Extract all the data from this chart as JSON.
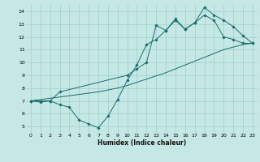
{
  "xlabel": "Humidex (Indice chaleur)",
  "bg_color": "#c5e8e5",
  "grid_color": "#9ecece",
  "line_color": "#1a6b6b",
  "xlim": [
    -0.5,
    23.5
  ],
  "ylim": [
    4.5,
    14.5
  ],
  "xticks": [
    0,
    1,
    2,
    3,
    4,
    5,
    6,
    7,
    8,
    9,
    10,
    11,
    12,
    13,
    14,
    15,
    16,
    17,
    18,
    19,
    20,
    21,
    22,
    23
  ],
  "yticks": [
    5,
    6,
    7,
    8,
    9,
    10,
    11,
    12,
    13,
    14
  ],
  "line1_x": [
    0,
    1,
    2,
    3,
    4,
    5,
    6,
    7,
    8,
    9,
    10,
    11,
    12,
    13,
    14,
    15,
    16,
    17,
    18,
    19,
    20,
    21,
    22,
    23
  ],
  "line1_y": [
    7.0,
    6.9,
    7.0,
    6.7,
    6.5,
    5.5,
    5.2,
    4.9,
    5.8,
    7.1,
    8.6,
    9.8,
    11.4,
    11.8,
    12.5,
    13.3,
    12.6,
    13.1,
    13.7,
    13.3,
    12.0,
    11.8,
    11.5,
    11.5
  ],
  "line2_x": [
    0,
    1,
    2,
    3,
    4,
    5,
    6,
    7,
    8,
    9,
    10,
    11,
    12,
    13,
    14,
    15,
    16,
    17,
    18,
    19,
    20,
    21,
    22,
    23
  ],
  "line2_y": [
    7.0,
    7.1,
    7.2,
    7.3,
    7.4,
    7.5,
    7.6,
    7.7,
    7.85,
    8.0,
    8.2,
    8.45,
    8.7,
    8.95,
    9.2,
    9.5,
    9.8,
    10.1,
    10.4,
    10.7,
    11.0,
    11.2,
    11.4,
    11.5
  ],
  "line3_x": [
    0,
    1,
    2,
    3,
    10,
    11,
    12,
    13,
    14,
    15,
    16,
    17,
    18,
    19,
    20,
    21,
    22,
    23
  ],
  "line3_y": [
    7.0,
    7.0,
    7.0,
    7.7,
    9.0,
    9.5,
    10.0,
    12.9,
    12.5,
    13.4,
    12.6,
    13.1,
    14.3,
    13.7,
    13.3,
    12.8,
    12.1,
    11.5
  ]
}
